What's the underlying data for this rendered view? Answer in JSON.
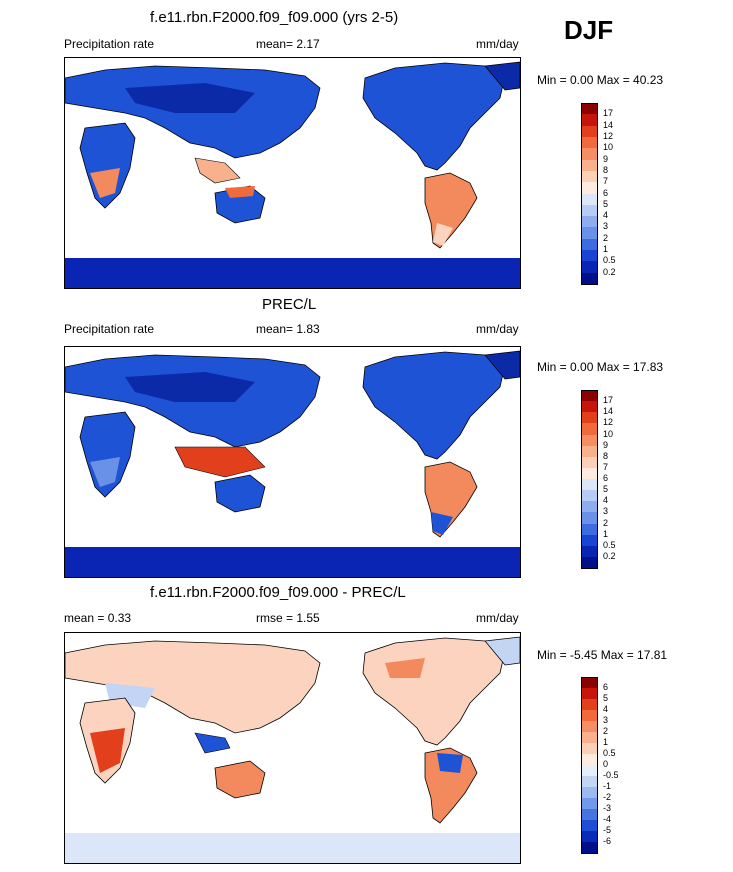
{
  "season": "DJF",
  "colors": {
    "land_blue": "#1f53d6",
    "land_blue_dark": "#0a2aa8",
    "ocean": "#ffffff",
    "warm": "#f28a5e",
    "warm_light": "#fbd3bf",
    "outline": "#000000"
  },
  "panels": [
    {
      "title": "f.e11.rbn.F2000.f09_f09.000 (yrs 2-5)",
      "left_label": "Precipitation rate",
      "mean_text": "mean=  2.17",
      "units": "mm/day",
      "minmax": "Min =   0.00 Max =  40.23",
      "colorbar_labels": [
        "17",
        "14",
        "12",
        "10",
        "9",
        "8",
        "7",
        "6",
        "5",
        "4",
        "3",
        "2",
        "1",
        "0.5",
        "0.2"
      ],
      "colorbar_colors": [
        "#8b0000",
        "#c8150c",
        "#e2401c",
        "#f06a3c",
        "#f58e62",
        "#f9b08c",
        "#fcd0b6",
        "#fdebe0",
        "#dbe6f8",
        "#b7ccf4",
        "#8dadee",
        "#6a91e8",
        "#3d6be0",
        "#1845d4",
        "#0a24b4",
        "#000f8a"
      ],
      "chart_data": {
        "type": "heatmap",
        "title": "f.e11.rbn.F2000.f09_f09.000 (yrs 2-5)",
        "variable": "Precipitation rate",
        "units": "mm/day",
        "mean": 2.17,
        "min": 0.0,
        "max": 40.23,
        "levels": [
          0.2,
          0.5,
          1,
          2,
          3,
          4,
          5,
          6,
          7,
          8,
          9,
          10,
          12,
          14,
          17
        ]
      }
    },
    {
      "title": "PREC/L",
      "left_label": "Precipitation rate",
      "mean_text": "mean=   1.83",
      "units": "mm/day",
      "minmax": "Min =   0.00 Max =  17.83",
      "colorbar_labels": [
        "17",
        "14",
        "12",
        "10",
        "9",
        "8",
        "7",
        "6",
        "5",
        "4",
        "3",
        "2",
        "1",
        "0.5",
        "0.2"
      ],
      "colorbar_colors": [
        "#8b0000",
        "#c8150c",
        "#e2401c",
        "#f06a3c",
        "#f58e62",
        "#f9b08c",
        "#fcd0b6",
        "#fdebe0",
        "#dbe6f8",
        "#b7ccf4",
        "#8dadee",
        "#6a91e8",
        "#3d6be0",
        "#1845d4",
        "#0a24b4",
        "#000f8a"
      ],
      "chart_data": {
        "type": "heatmap",
        "title": "PREC/L",
        "variable": "Precipitation rate",
        "units": "mm/day",
        "mean": 1.83,
        "min": 0.0,
        "max": 17.83,
        "levels": [
          0.2,
          0.5,
          1,
          2,
          3,
          4,
          5,
          6,
          7,
          8,
          9,
          10,
          12,
          14,
          17
        ]
      }
    },
    {
      "title": "f.e11.rbn.F2000.f09_f09.000 - PREC/L",
      "left_label": "mean =   0.33",
      "mean_text": "rmse =   1.55",
      "units": "mm/day",
      "minmax": "Min =  -5.45 Max =  17.81",
      "colorbar_labels": [
        "6",
        "5",
        "4",
        "3",
        "2",
        "1",
        "0.5",
        "0",
        "-0.5",
        "-1",
        "-2",
        "-3",
        "-4",
        "-5",
        "-6"
      ],
      "colorbar_colors": [
        "#8b0000",
        "#c8150c",
        "#e2401c",
        "#f06a3c",
        "#f58e62",
        "#f9b08c",
        "#fcd0b6",
        "#fdebe0",
        "#e6eefa",
        "#c2d5f5",
        "#9bbaf0",
        "#7099ea",
        "#4874e2",
        "#1f4ed6",
        "#0a2ab8",
        "#000f8a"
      ],
      "chart_data": {
        "type": "heatmap",
        "title": "f.e11.rbn.F2000.f09_f09.000 - PREC/L",
        "units": "mm/day",
        "mean": 0.33,
        "rmse": 1.55,
        "min": -5.45,
        "max": 17.81,
        "levels": [
          -6,
          -5,
          -4,
          -3,
          -2,
          -1,
          -0.5,
          0,
          0.5,
          1,
          2,
          3,
          4,
          5,
          6
        ]
      }
    }
  ]
}
